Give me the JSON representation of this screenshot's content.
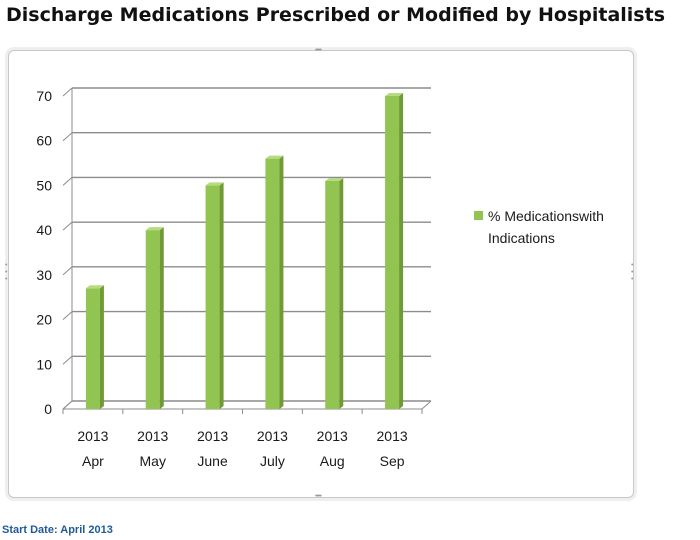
{
  "page": {
    "title": "Discharge Medications Prescribed or Modified by Hospitalists",
    "footnote": "Start Date: April 2013"
  },
  "colors": {
    "bar_front": "#92c452",
    "bar_side": "#6f9a35",
    "bar_top": "#b7db80",
    "grid": "#8c8c8c"
  },
  "chart_data": {
    "type": "bar",
    "title": "",
    "xlabel": "",
    "ylabel": "",
    "categories": [
      [
        "2013",
        "Apr"
      ],
      [
        "2013",
        "May"
      ],
      [
        "2013",
        "June"
      ],
      [
        "2013",
        "July"
      ],
      [
        "2013",
        "Aug"
      ],
      [
        "2013",
        "Sep"
      ]
    ],
    "series": [
      {
        "name": "% Medicationswith Indications",
        "values": [
          27,
          40,
          50,
          56,
          51,
          70
        ]
      }
    ],
    "ylim": [
      0,
      70
    ],
    "yticks": [
      0,
      10,
      20,
      30,
      40,
      50,
      60,
      70
    ],
    "grid": true,
    "legend_position": "right"
  }
}
